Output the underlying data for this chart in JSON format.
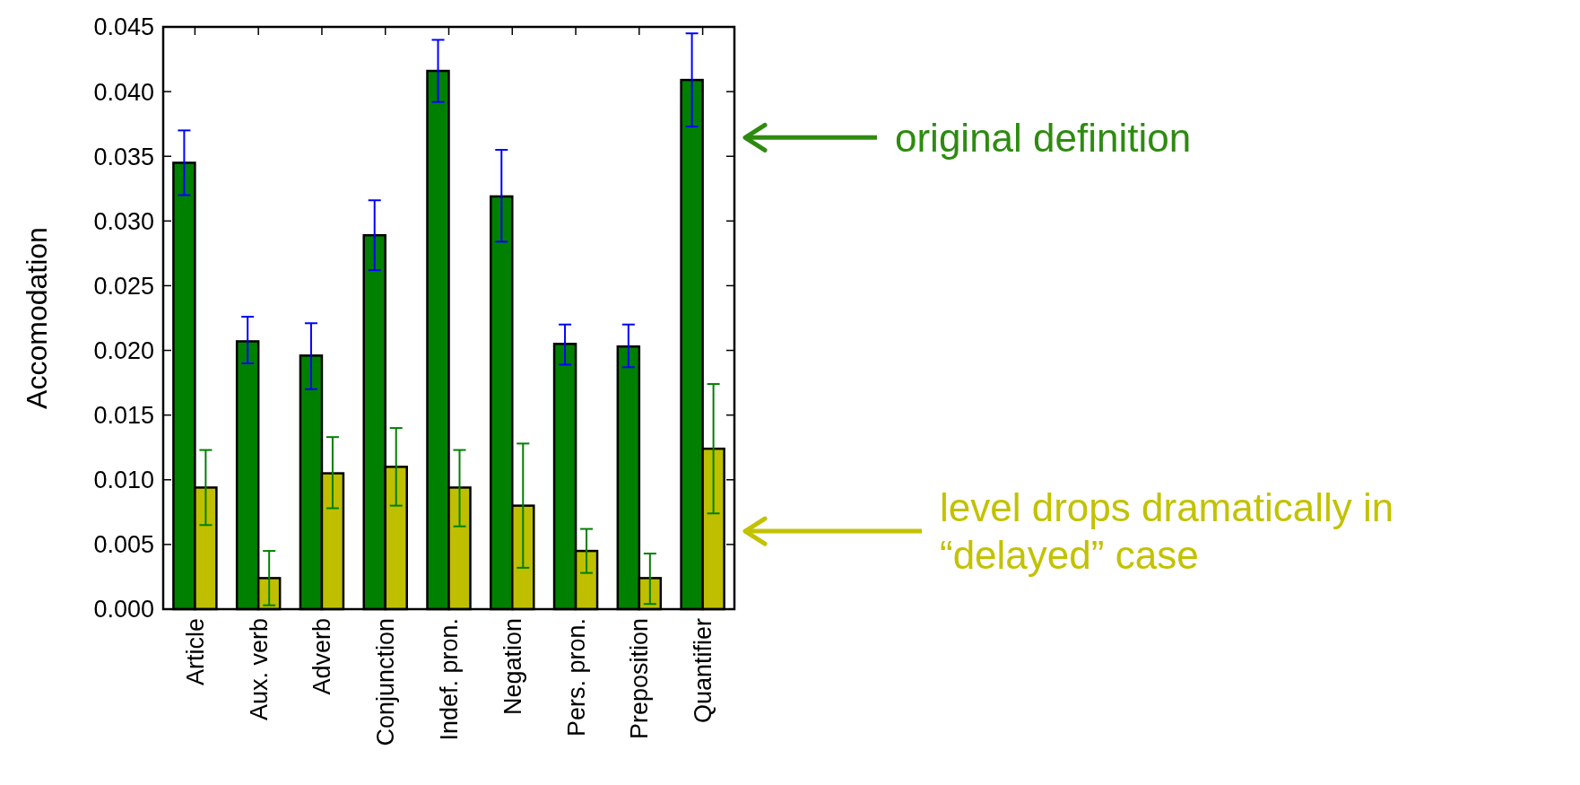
{
  "chart_data": {
    "type": "bar",
    "ylabel": "Accomodation",
    "categories": [
      "Article",
      "Aux. verb",
      "Adverb",
      "Conjunction",
      "Indef. pron.",
      "Negation",
      "Pers. pron.",
      "Preposition",
      "Quantifier"
    ],
    "series": [
      {
        "color": "#008000",
        "values": [
          0.0345,
          0.0207,
          0.0196,
          0.0289,
          0.0416,
          0.0319,
          0.0205,
          0.0203,
          0.0409
        ],
        "errors": [
          [
            0.032,
            0.037
          ],
          [
            0.019,
            0.0226
          ],
          [
            0.017,
            0.0221
          ],
          [
            0.0262,
            0.0316
          ],
          [
            0.0392,
            0.044
          ],
          [
            0.0284,
            0.0355
          ],
          [
            0.0189,
            0.022
          ],
          [
            0.0187,
            0.022
          ],
          [
            0.0373,
            0.0445
          ]
        ]
      },
      {
        "color": "#bfbf00",
        "values": [
          0.0094,
          0.0024,
          0.0105,
          0.011,
          0.0094,
          0.008,
          0.0045,
          0.0024,
          0.0124
        ],
        "errors": [
          [
            0.0065,
            0.0123
          ],
          [
            0.0003,
            0.0045
          ],
          [
            0.0078,
            0.0133
          ],
          [
            0.008,
            0.014
          ],
          [
            0.0064,
            0.0123
          ],
          [
            0.0032,
            0.0128
          ],
          [
            0.0028,
            0.0062
          ],
          [
            0.0004,
            0.0043
          ],
          [
            0.0074,
            0.0174
          ]
        ]
      }
    ],
    "ylim": [
      0,
      0.045
    ],
    "yticks": [
      {
        "value": 0,
        "label": "0.000"
      },
      {
        "value": 0.005,
        "label": "0.005"
      },
      {
        "value": 0.01,
        "label": "0.010"
      },
      {
        "value": 0.015,
        "label": "0.015"
      },
      {
        "value": 0.02,
        "label": "0.020"
      },
      {
        "value": 0.025,
        "label": "0.025"
      },
      {
        "value": 0.03,
        "label": "0.030"
      },
      {
        "value": 0.035,
        "label": "0.035"
      },
      {
        "value": 0.04,
        "label": "0.040"
      },
      {
        "value": 0.045,
        "label": "0.045"
      }
    ],
    "annotations": [
      "original definition",
      "level drops dramatically in “delayed” case"
    ]
  }
}
